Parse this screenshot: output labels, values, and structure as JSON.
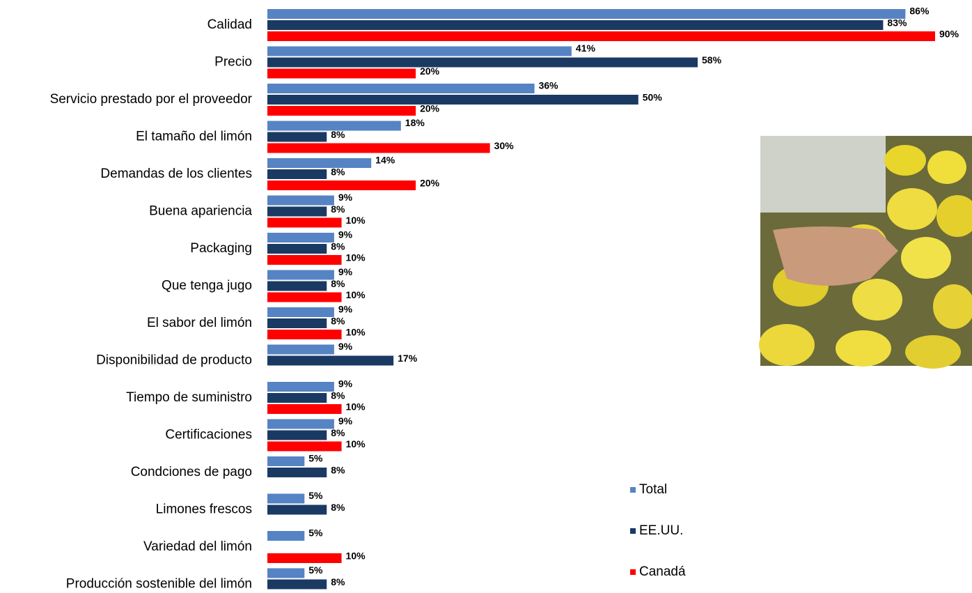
{
  "chart_data": {
    "type": "hbar",
    "categories": [
      "Calidad",
      "Precio",
      "Servicio prestado por el proveedor",
      "El tamaño del limón",
      "Demandas de los clientes",
      "Buena apariencia",
      "Packaging",
      "Que tenga jugo",
      "El sabor del limón",
      "Disponibilidad de producto",
      "Tiempo de suministro",
      "Certificaciones",
      "Condciones de pago",
      "Limones frescos",
      "Variedad del limón",
      "Producción sostenible del limón"
    ],
    "series": [
      {
        "name": "Total",
        "color": "#5683c3",
        "values": [
          86,
          41,
          36,
          18,
          14,
          9,
          9,
          9,
          9,
          9,
          9,
          9,
          5,
          5,
          5,
          5
        ],
        "value_labels": [
          "86%",
          "41%",
          "36%",
          "18%",
          "14%",
          "9%",
          "9%",
          "9%",
          "9%",
          "9%",
          "9%",
          "9%",
          "5%",
          "5%",
          "5%",
          "5%"
        ]
      },
      {
        "name": "EE.UU.",
        "color": "#1b3a63",
        "values": [
          83,
          58,
          50,
          8,
          8,
          8,
          8,
          8,
          8,
          17,
          8,
          8,
          8,
          8,
          null,
          8
        ],
        "value_labels": [
          "83%",
          "58%",
          "50%",
          "8%",
          "8%",
          "8%",
          "8%",
          "8%",
          "8%",
          "17%",
          "8%",
          "8%",
          "8%",
          "8%",
          null,
          "8%"
        ]
      },
      {
        "name": "Canadá",
        "color": "#ff0000",
        "values": [
          90,
          20,
          20,
          30,
          20,
          10,
          10,
          10,
          10,
          null,
          10,
          10,
          null,
          null,
          10,
          null
        ],
        "value_labels": [
          "90%",
          "20%",
          "20%",
          "30%",
          "20%",
          "10%",
          "10%",
          "10%",
          "10%",
          null,
          "10%",
          "10%",
          null,
          null,
          "10%",
          null
        ]
      }
    ],
    "legend": "right"
  }
}
